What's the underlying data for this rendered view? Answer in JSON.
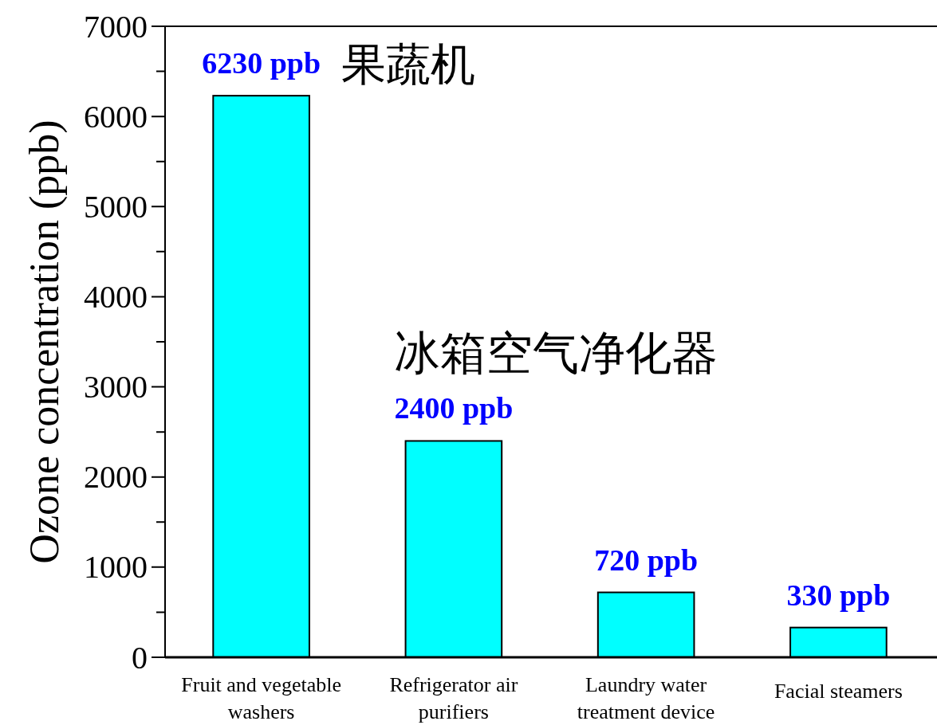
{
  "chart_data": {
    "type": "bar",
    "ylabel": "Ozone concentration (ppb)",
    "categories": [
      "Fruit and vegetable washers",
      "Refrigerator air purifiers",
      "Laundry water treatment device",
      "Facial steamers"
    ],
    "values": [
      6230,
      2400,
      720,
      330
    ],
    "color": "#00ffff",
    "value_labels": [
      "6230 ppb",
      "2400 ppb",
      "720 ppb",
      "330 ppb"
    ],
    "annotations": [
      "果蔬机",
      "冰箱空气净化器"
    ],
    "ylim": [
      0,
      7000
    ],
    "yticks": [
      0,
      {
        "value": 500,
        "label": null
      },
      1000,
      {
        "value": 1500,
        "label": null
      },
      2000,
      {
        "value": 2500,
        "label": null
      },
      3000,
      {
        "value": 3500,
        "label": null
      },
      4000,
      {
        "value": 4500,
        "label": null
      },
      5000,
      {
        "value": 5500,
        "label": null
      },
      6000,
      {
        "value": 6500,
        "label": null
      },
      7000
    ],
    "grid": false
  }
}
